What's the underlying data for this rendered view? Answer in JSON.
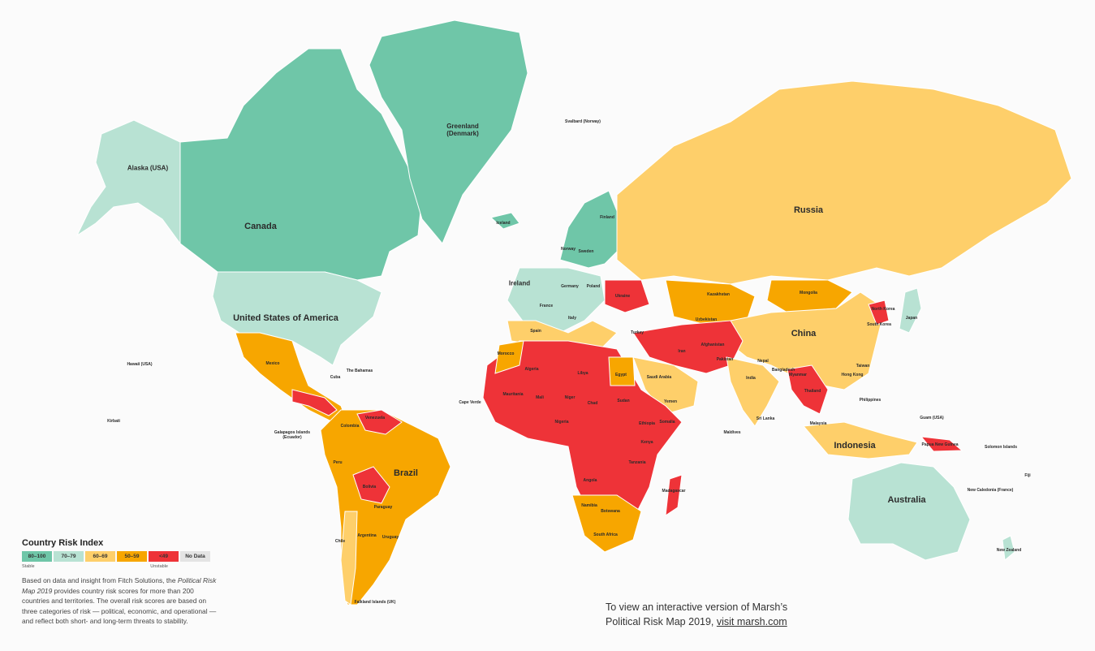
{
  "legend": {
    "title": "Country Risk Index",
    "bins": [
      {
        "label": "80–100",
        "color": "#6fc6a8"
      },
      {
        "label": "70–79",
        "color": "#b8e2d3"
      },
      {
        "label": "60–69",
        "color": "#fecf6a"
      },
      {
        "label": "50–59",
        "color": "#f7a600"
      },
      {
        "label": "<49",
        "color": "#ee3338"
      },
      {
        "label": "No Data",
        "color": "#e4e4e4"
      }
    ],
    "stable_label": "Stable",
    "unstable_label": "Unstable",
    "description_pre": "Based on data and insight from Fitch Solutions, the ",
    "description_italic": "Political Risk Map 2019",
    "description_post": " provides country risk scores for more than 200 countries and territories. The overall risk scores are based on three categories of risk — political, economic, and operational — and reflect both short- and long-term threats to stability."
  },
  "cta": {
    "line1": "To view an interactive version of Marsh’s",
    "line2_pre": "Political Risk Map 2019, ",
    "link": "visit marsh.com"
  },
  "labels": [
    "Alaska (USA)",
    "Canada",
    "Greenland (Denmark)",
    "United States of America",
    "Mexico",
    "Brazil",
    "Russia",
    "China",
    "Australia",
    "Indonesia",
    "Kazakhstan",
    "Mongolia",
    "Ireland",
    "Iceland",
    "Svalbard (Norway)",
    "Algeria",
    "Libya",
    "Egypt",
    "Mali",
    "Niger",
    "Chad",
    "Sudan",
    "Ethiopia",
    "Nigeria",
    "India",
    "Iran",
    "Afghanistan",
    "Pakistan",
    "Saudi Arabia",
    "Turkey",
    "Ukraine",
    "Colombia",
    "Peru",
    "Bolivia",
    "Argentina",
    "Chile",
    "Venezuela",
    "Angola",
    "Namibia",
    "Botswana",
    "South Africa",
    "Madagascar",
    "Tanzania",
    "North Korea",
    "South Korea",
    "Japan",
    "Thailand",
    "Malaysia",
    "Philippines",
    "Papua New Guinea",
    "New Zealand",
    "Norway",
    "Sweden",
    "Finland",
    "Poland",
    "Kirbati",
    "Hawaii (USA)",
    "Cape Verde",
    "Falkland Islands (UK)",
    "Galapagos Islands (Ecuador)",
    "The Bahamas",
    "Cuba",
    "Morocco",
    "Mauritania",
    "Somalia",
    "Kenya",
    "Uzbekistan",
    "Sri Lanka",
    "Maldives",
    "Guam (USA)",
    "Solomon Islands",
    "Fiji",
    "New Caledonia (France)",
    "Paraguay",
    "Uruguay",
    "Spain",
    "Italy",
    "France",
    "Germany",
    "Taiwan",
    "Hong Kong",
    "Myanmar",
    "Bangladesh",
    "Nepal",
    "Yemen"
  ]
}
